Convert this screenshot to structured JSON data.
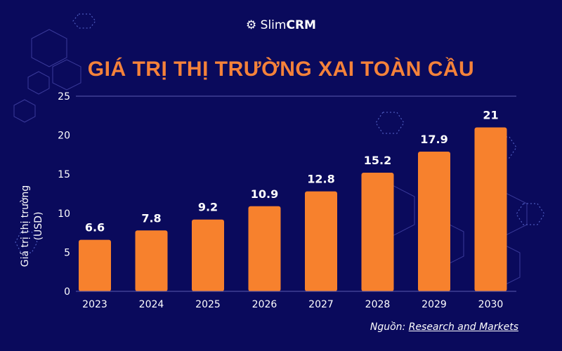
{
  "brand": {
    "logo_text_light": "Slim",
    "logo_text_bold": "CRM",
    "logo_icon": "gear-icon"
  },
  "colors": {
    "background": "#0a0a5c",
    "bar": "#f7812d",
    "title": "#f5823a",
    "text": "#ffffff",
    "axis": "#5a5ab0"
  },
  "source": {
    "label": "Nguồn:",
    "link": "Research and Markets"
  },
  "chart_data": {
    "type": "bar",
    "title": "GIÁ TRỊ THỊ TRƯỜNG XAI TOÀN CẦU",
    "xlabel": "",
    "ylabel": "Giá trị thị trường (USD)",
    "ylabel_lines": [
      "Giá trị thị trường",
      "(USD)"
    ],
    "categories": [
      "2023",
      "2024",
      "2025",
      "2026",
      "2027",
      "2028",
      "2029",
      "2030"
    ],
    "values": [
      6.6,
      7.8,
      9.2,
      10.9,
      12.8,
      15.2,
      17.9,
      21
    ],
    "data_labels": [
      "6.6",
      "7.8",
      "9.2",
      "10.9",
      "12.8",
      "15.2",
      "17.9",
      "21"
    ],
    "ylim": [
      0,
      25
    ],
    "yticks": [
      0,
      5,
      10,
      15,
      20,
      25
    ],
    "grid": false,
    "legend": "none"
  }
}
